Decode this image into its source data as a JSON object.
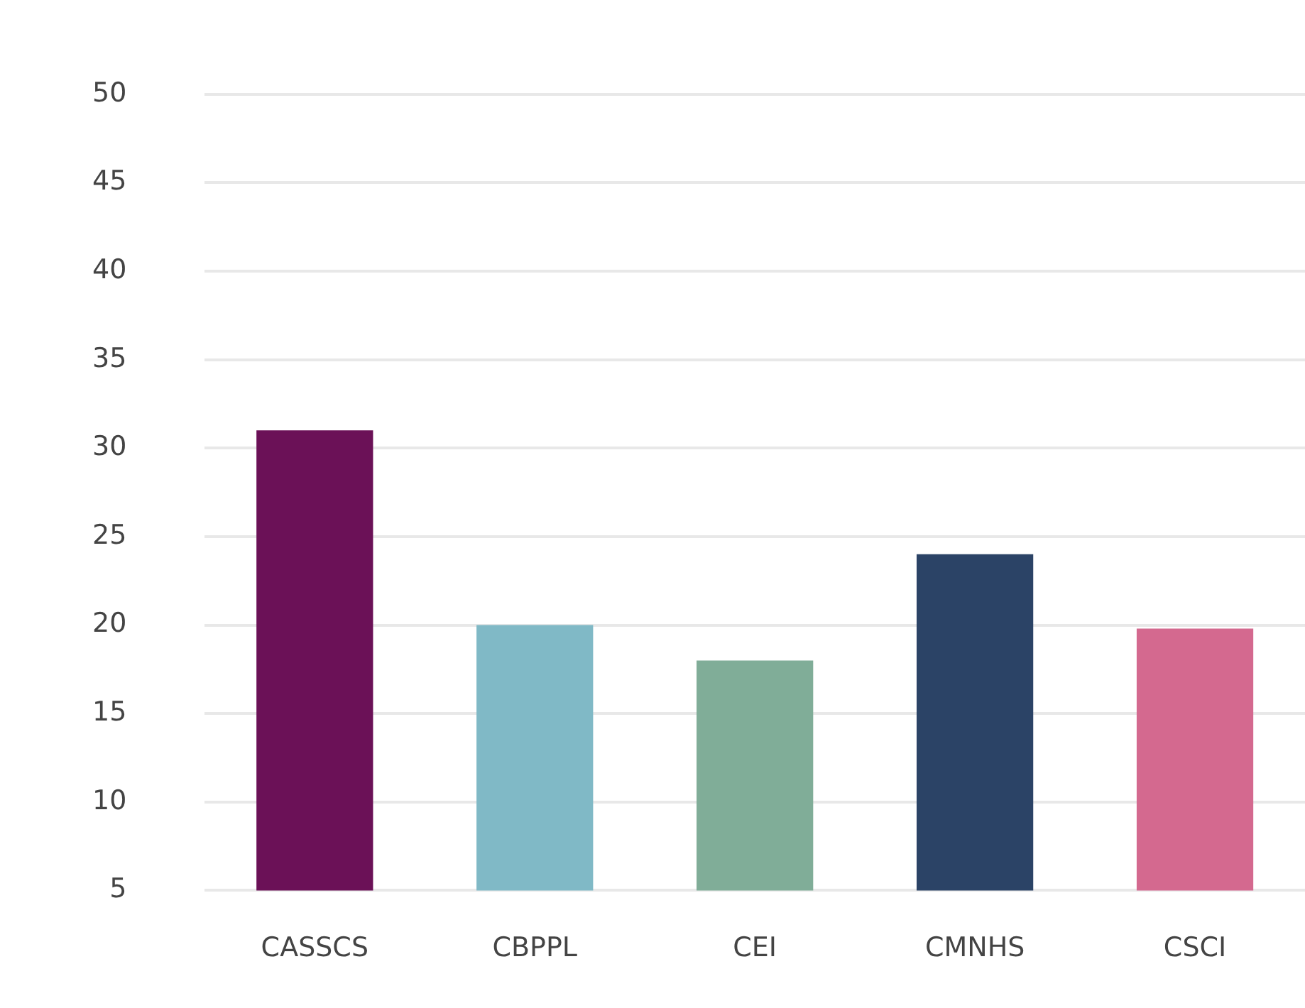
{
  "chart_data": {
    "type": "bar",
    "categories": [
      "CASSCS",
      "CBPPL",
      "CEI",
      "CMNHS",
      "CSCI"
    ],
    "values": [
      31,
      20,
      18,
      24,
      19.8
    ],
    "colors": [
      "#6b1157",
      "#80b9c6",
      "#80ad98",
      "#2b4366",
      "#d4698f"
    ],
    "ylim": [
      5,
      50
    ],
    "yticks": [
      5,
      10,
      15,
      20,
      25,
      30,
      35,
      40,
      45,
      50
    ],
    "grid": "y"
  }
}
